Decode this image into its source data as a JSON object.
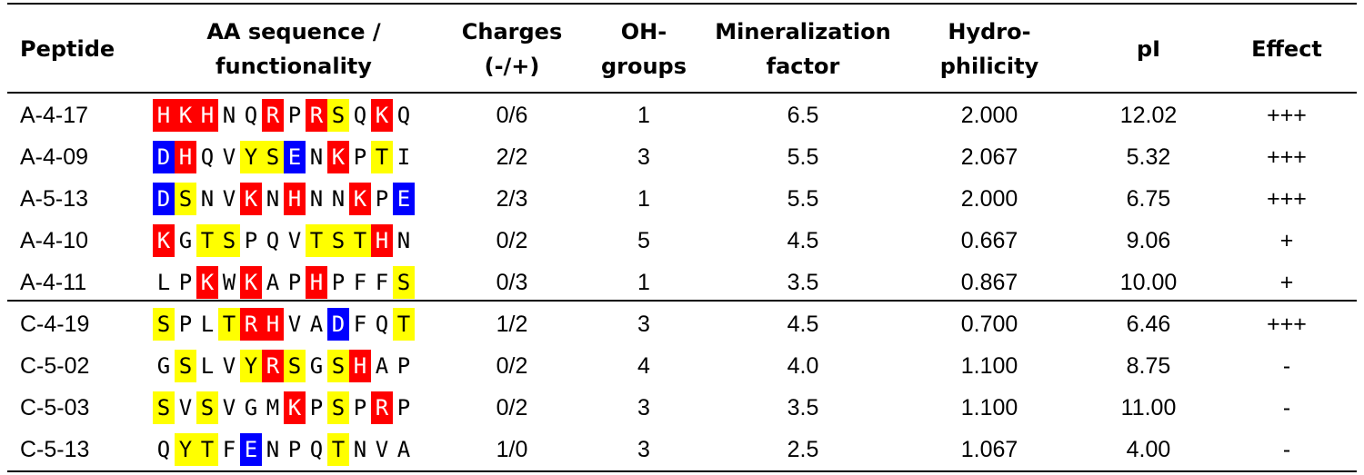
{
  "colors": {
    "basic": "#ff0000",
    "acidic": "#0000ff",
    "hydroxyl": "#ffff00"
  },
  "headers": {
    "peptide": "Peptide",
    "sequence_l1": "AA sequence /",
    "sequence_l2": "functionality",
    "charges_l1": "Charges",
    "charges_l2": "(-/+)",
    "oh_l1": "OH-",
    "oh_l2": "groups",
    "min_l1": "Mineralization",
    "min_l2": "factor",
    "hyd_l1": "Hydro-",
    "hyd_l2": "philicity",
    "pi": "pI",
    "effect": "Effect"
  },
  "rows": [
    {
      "peptide": "A-4-17",
      "charges": "0/6",
      "oh": "1",
      "mineralization": "6.5",
      "hydrophilicity": "2.000",
      "pi": "12.02",
      "effect": "+++",
      "sequence": [
        [
          "H",
          "basic"
        ],
        [
          "K",
          "basic"
        ],
        [
          "H",
          "basic"
        ],
        [
          "N",
          ""
        ],
        [
          "Q",
          ""
        ],
        [
          "R",
          "basic"
        ],
        [
          "P",
          ""
        ],
        [
          "R",
          "basic"
        ],
        [
          "S",
          "oh"
        ],
        [
          "Q",
          ""
        ],
        [
          "K",
          "basic"
        ],
        [
          "Q",
          ""
        ]
      ]
    },
    {
      "peptide": "A-4-09",
      "charges": "2/2",
      "oh": "3",
      "mineralization": "5.5",
      "hydrophilicity": "2.067",
      "pi": "5.32",
      "effect": "+++",
      "sequence": [
        [
          "D",
          "acid"
        ],
        [
          "H",
          "basic"
        ],
        [
          "Q",
          ""
        ],
        [
          "V",
          ""
        ],
        [
          "Y",
          "oh"
        ],
        [
          "S",
          "oh"
        ],
        [
          "E",
          "acid"
        ],
        [
          "N",
          ""
        ],
        [
          "K",
          "basic"
        ],
        [
          "P",
          ""
        ],
        [
          "T",
          "oh"
        ],
        [
          "I",
          ""
        ]
      ]
    },
    {
      "peptide": "A-5-13",
      "charges": "2/3",
      "oh": "1",
      "mineralization": "5.5",
      "hydrophilicity": "2.000",
      "pi": "6.75",
      "effect": "+++",
      "sequence": [
        [
          "D",
          "acid"
        ],
        [
          "S",
          "oh"
        ],
        [
          "N",
          ""
        ],
        [
          "V",
          ""
        ],
        [
          "K",
          "basic"
        ],
        [
          "N",
          ""
        ],
        [
          "H",
          "basic"
        ],
        [
          "N",
          ""
        ],
        [
          "N",
          ""
        ],
        [
          "K",
          "basic"
        ],
        [
          "P",
          ""
        ],
        [
          "E",
          "acid"
        ]
      ]
    },
    {
      "peptide": "A-4-10",
      "charges": "0/2",
      "oh": "5",
      "mineralization": "4.5",
      "hydrophilicity": "0.667",
      "pi": "9.06",
      "effect": "+",
      "sequence": [
        [
          "K",
          "basic"
        ],
        [
          "G",
          ""
        ],
        [
          "T",
          "oh"
        ],
        [
          "S",
          "oh"
        ],
        [
          "P",
          ""
        ],
        [
          "Q",
          ""
        ],
        [
          "V",
          ""
        ],
        [
          "T",
          "oh"
        ],
        [
          "S",
          "oh"
        ],
        [
          "T",
          "oh"
        ],
        [
          "H",
          "basic"
        ],
        [
          "N",
          ""
        ]
      ]
    },
    {
      "peptide": "A-4-11",
      "charges": "0/3",
      "oh": "1",
      "mineralization": "3.5",
      "hydrophilicity": "0.867",
      "pi": "10.00",
      "effect": "+",
      "sequence": [
        [
          "L",
          ""
        ],
        [
          "P",
          ""
        ],
        [
          "K",
          "basic"
        ],
        [
          "W",
          ""
        ],
        [
          "K",
          "basic"
        ],
        [
          "A",
          ""
        ],
        [
          "P",
          ""
        ],
        [
          "H",
          "basic"
        ],
        [
          "P",
          ""
        ],
        [
          "F",
          ""
        ],
        [
          "F",
          ""
        ],
        [
          "S",
          "oh"
        ]
      ]
    },
    {
      "peptide": "C-4-19",
      "charges": "1/2",
      "oh": "3",
      "mineralization": "4.5",
      "hydrophilicity": "0.700",
      "pi": "6.46",
      "effect": "+++",
      "sequence": [
        [
          "S",
          "oh"
        ],
        [
          "P",
          ""
        ],
        [
          "L",
          ""
        ],
        [
          "T",
          "oh"
        ],
        [
          "R",
          "basic"
        ],
        [
          "H",
          "basic"
        ],
        [
          "V",
          ""
        ],
        [
          "A",
          ""
        ],
        [
          "D",
          "acid"
        ],
        [
          "F",
          ""
        ],
        [
          "Q",
          ""
        ],
        [
          "T",
          "oh"
        ]
      ]
    },
    {
      "peptide": "C-5-02",
      "charges": "0/2",
      "oh": "4",
      "mineralization": "4.0",
      "hydrophilicity": "1.100",
      "pi": "8.75",
      "effect": "-",
      "sequence": [
        [
          "G",
          ""
        ],
        [
          "S",
          "oh"
        ],
        [
          "L",
          ""
        ],
        [
          "V",
          ""
        ],
        [
          "Y",
          "oh"
        ],
        [
          "R",
          "basic"
        ],
        [
          "S",
          "oh"
        ],
        [
          "G",
          ""
        ],
        [
          "S",
          "oh"
        ],
        [
          "H",
          "basic"
        ],
        [
          "A",
          ""
        ],
        [
          "P",
          ""
        ]
      ]
    },
    {
      "peptide": "C-5-03",
      "charges": "0/2",
      "oh": "3",
      "mineralization": "3.5",
      "hydrophilicity": "1.100",
      "pi": "11.00",
      "effect": "-",
      "sequence": [
        [
          "S",
          "oh"
        ],
        [
          "V",
          ""
        ],
        [
          "S",
          "oh"
        ],
        [
          "V",
          ""
        ],
        [
          "G",
          ""
        ],
        [
          "M",
          ""
        ],
        [
          "K",
          "basic"
        ],
        [
          "P",
          ""
        ],
        [
          "S",
          "oh"
        ],
        [
          "P",
          ""
        ],
        [
          "R",
          "basic"
        ],
        [
          "P",
          ""
        ]
      ]
    },
    {
      "peptide": "C-5-13",
      "charges": "1/0",
      "oh": "3",
      "mineralization": "2.5",
      "hydrophilicity": "1.067",
      "pi": "4.00",
      "effect": "-",
      "sequence": [
        [
          "Q",
          ""
        ],
        [
          "Y",
          "oh"
        ],
        [
          "T",
          "oh"
        ],
        [
          "F",
          ""
        ],
        [
          "E",
          "acid"
        ],
        [
          "N",
          ""
        ],
        [
          "P",
          ""
        ],
        [
          "Q",
          ""
        ],
        [
          "T",
          "oh"
        ],
        [
          "N",
          ""
        ],
        [
          "V",
          ""
        ],
        [
          "A",
          ""
        ]
      ]
    }
  ]
}
